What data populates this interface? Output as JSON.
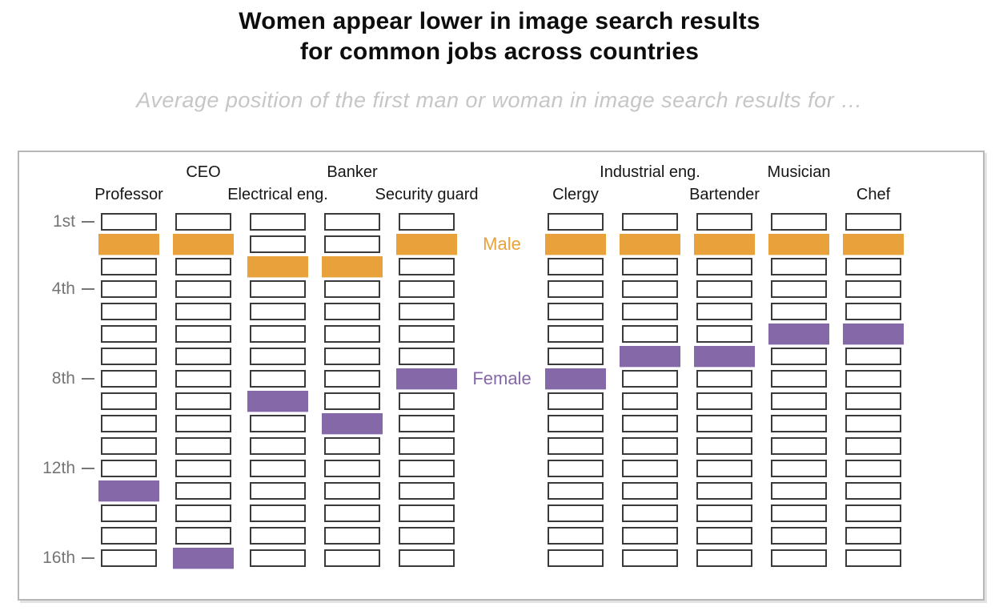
{
  "title": {
    "line1": "Women appear lower in image search results",
    "line2": "for common jobs across countries"
  },
  "subtitle": "Average position of the first man or woman in image search results for …",
  "axis": {
    "ticks": [
      {
        "row": 1,
        "label": "1st"
      },
      {
        "row": 4,
        "label": "4th"
      },
      {
        "row": 8,
        "label": "8th"
      },
      {
        "row": 12,
        "label": "12th"
      },
      {
        "row": 16,
        "label": "16th"
      }
    ]
  },
  "chart_data": {
    "type": "heatmap",
    "title": "Women appear lower in image search results for common jobs across countries",
    "subtitle": "Average position of the first man or woman in image search results for …",
    "categories": [
      "Professor",
      "CEO",
      "Electrical eng.",
      "Banker",
      "Security guard",
      "Clergy",
      "Industrial eng.",
      "Bartender",
      "Musician",
      "Chef"
    ],
    "positions_per_column": 16,
    "y_axis": {
      "tick_labels": [
        "1st",
        "4th",
        "8th",
        "12th",
        "16th"
      ],
      "tick_rows": [
        1,
        4,
        8,
        12,
        16
      ],
      "direction": "rank 1 at top, rank 16 at bottom"
    },
    "series": [
      {
        "name": "Male",
        "color": "#E9A23B",
        "values": [
          2,
          2,
          3,
          3,
          2,
          2,
          2,
          2,
          2,
          2
        ]
      },
      {
        "name": "Female",
        "color": "#8468A8",
        "values": [
          13,
          16,
          9,
          10,
          8,
          8,
          7,
          7,
          6,
          6
        ]
      }
    ],
    "legend_position": "in gap between the two groups of five columns",
    "grid": "off"
  }
}
